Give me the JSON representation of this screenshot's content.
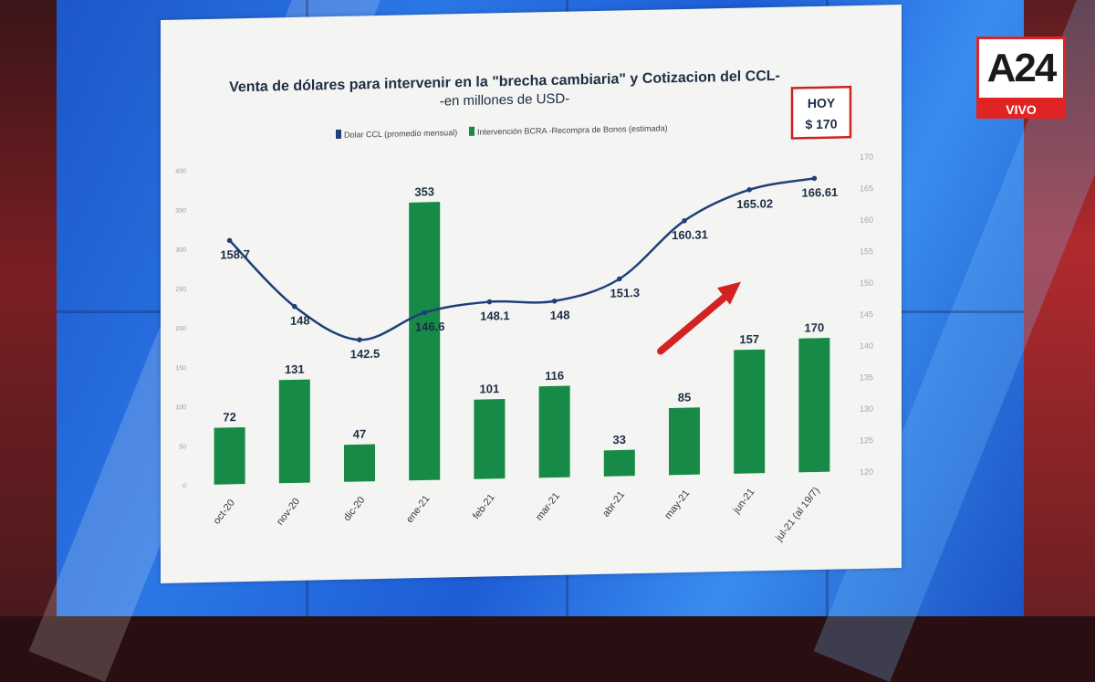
{
  "broadcast": {
    "channel_logo": "A24",
    "live_label": "VIVO"
  },
  "colors": {
    "line": "#1f3f7a",
    "bars": "#168a46",
    "arrow": "#d32222",
    "hoy_box_border": "#cc2222"
  },
  "callout": {
    "line1": "HOY",
    "line2": "$ 170"
  },
  "chart_data": {
    "type": "bar",
    "title": "Venta de dólares para intervenir en la \"brecha cambiaria\" y Cotizacion del CCL-",
    "subtitle": "-en millones de USD-",
    "categories": [
      "oct-20",
      "nov-20",
      "dic-20",
      "ene-21",
      "feb-21",
      "mar-21",
      "abr-21",
      "may-21",
      "jun-21",
      "jul-21 (al 19/7)"
    ],
    "series": [
      {
        "name": "Dolar CCL (promedio mensual)",
        "type": "line",
        "axis": "right",
        "values": [
          158.7,
          148,
          142.5,
          146.6,
          148.1,
          148,
          151.3,
          160.31,
          165.02,
          166.61
        ],
        "labels": [
          "158.7",
          "148",
          "142.5",
          "146.6",
          "148.1",
          "148",
          "151.3",
          "160.31",
          "165.02",
          "166.61"
        ]
      },
      {
        "name": "Intervención BCRA -Recompra de Bonos (estimada)",
        "type": "bar",
        "axis": "left",
        "values": [
          72,
          131,
          47,
          353,
          101,
          116,
          33,
          85,
          157,
          170
        ],
        "labels": [
          "72",
          "131",
          "47",
          "353",
          "101",
          "116",
          "33",
          "85",
          "157",
          "170"
        ]
      }
    ],
    "y_left": {
      "lim": [
        0,
        400
      ],
      "ticks": [
        "0",
        "50",
        "100",
        "150",
        "200",
        "250",
        "300",
        "350",
        "400"
      ]
    },
    "y_right": {
      "lim": [
        120,
        170
      ],
      "ticks": [
        "120",
        "125",
        "130",
        "135",
        "140",
        "145",
        "150",
        "155",
        "160",
        "165",
        "170"
      ]
    },
    "legend_position": "top-left",
    "grid": false
  }
}
